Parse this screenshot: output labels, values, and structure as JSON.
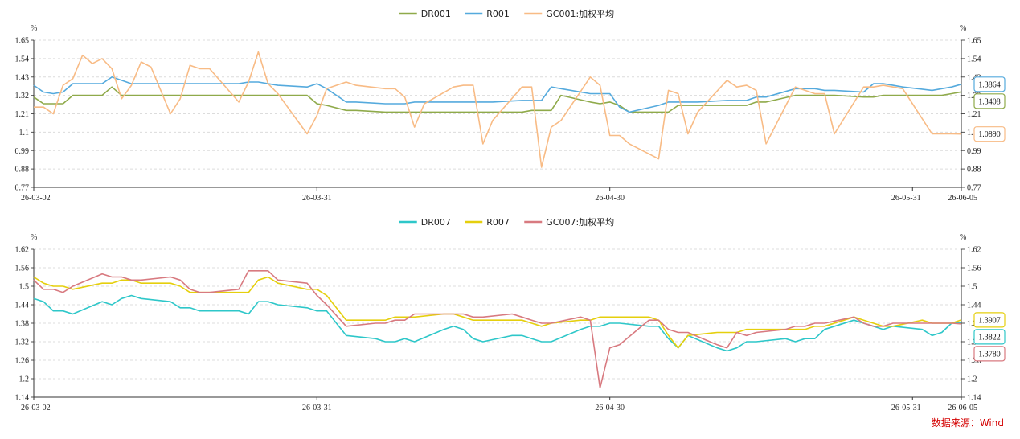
{
  "source_note": "数据来源：Wind",
  "chart_data": [
    {
      "type": "line",
      "unit_left": "%",
      "unit_right": "%",
      "ylim": [
        0.77,
        1.65
      ],
      "yticks": [
        "1.65",
        "1.54",
        "1.43",
        "1.32",
        "1.21",
        "1.1",
        "0.99",
        "0.88",
        "0.77"
      ],
      "xticks": [
        {
          "label": "26-03-02",
          "t": 0
        },
        {
          "label": "26-03-31",
          "t": 29
        },
        {
          "label": "26-04-30",
          "t": 59
        },
        {
          "label": "26-05-31",
          "t": 90
        },
        {
          "label": "26-06-05",
          "t": 95
        }
      ],
      "x_range": [
        0,
        95
      ],
      "grid": "horizontal-dashed",
      "legend": "top-center",
      "series": [
        {
          "name": "DR001",
          "color": "#8faa4a",
          "t": [
            0,
            1,
            3,
            4,
            5,
            7,
            8,
            9,
            10,
            11,
            14,
            15,
            16,
            17,
            18,
            21,
            22,
            23,
            24,
            25,
            28,
            29,
            30,
            32,
            33,
            36,
            37,
            38,
            39,
            40,
            43,
            44,
            45,
            46,
            47,
            50,
            51,
            52,
            53,
            54,
            57,
            58,
            59,
            60,
            61,
            64,
            65,
            66,
            67,
            68,
            71,
            72,
            73,
            74,
            75,
            78,
            79,
            80,
            81,
            82,
            85,
            86,
            87,
            88,
            89,
            92,
            93,
            94,
            95
          ],
          "values": [
            1.31,
            1.27,
            1.27,
            1.32,
            1.32,
            1.32,
            1.37,
            1.32,
            1.32,
            1.32,
            1.32,
            1.32,
            1.32,
            1.32,
            1.32,
            1.32,
            1.32,
            1.32,
            1.32,
            1.32,
            1.32,
            1.27,
            1.26,
            1.23,
            1.23,
            1.22,
            1.22,
            1.22,
            1.22,
            1.22,
            1.22,
            1.22,
            1.22,
            1.22,
            1.22,
            1.22,
            1.23,
            1.23,
            1.23,
            1.32,
            1.28,
            1.27,
            1.28,
            1.26,
            1.22,
            1.22,
            1.22,
            1.26,
            1.26,
            1.26,
            1.26,
            1.26,
            1.26,
            1.28,
            1.28,
            1.32,
            1.32,
            1.32,
            1.32,
            1.32,
            1.31,
            1.31,
            1.32,
            1.32,
            1.32,
            1.32,
            1.32,
            1.33,
            1.3408
          ]
        },
        {
          "name": "R001",
          "color": "#55aadd",
          "t": [
            0,
            1,
            2,
            3,
            4,
            5,
            6,
            7,
            8,
            9,
            10,
            11,
            12,
            14,
            15,
            16,
            17,
            18,
            21,
            22,
            23,
            24,
            25,
            28,
            29,
            30,
            32,
            33,
            36,
            37,
            38,
            39,
            40,
            43,
            44,
            45,
            46,
            47,
            50,
            51,
            52,
            53,
            54,
            57,
            58,
            59,
            60,
            61,
            64,
            65,
            66,
            67,
            68,
            71,
            72,
            73,
            74,
            75,
            78,
            79,
            80,
            81,
            82,
            85,
            86,
            87,
            88,
            89,
            92,
            93,
            94,
            95
          ],
          "values": [
            1.38,
            1.34,
            1.33,
            1.34,
            1.39,
            1.39,
            1.39,
            1.39,
            1.43,
            1.41,
            1.39,
            1.39,
            1.39,
            1.39,
            1.39,
            1.39,
            1.39,
            1.39,
            1.39,
            1.4,
            1.4,
            1.39,
            1.38,
            1.37,
            1.39,
            1.36,
            1.28,
            1.28,
            1.27,
            1.27,
            1.27,
            1.28,
            1.28,
            1.28,
            1.28,
            1.28,
            1.28,
            1.28,
            1.29,
            1.29,
            1.29,
            1.37,
            1.36,
            1.33,
            1.33,
            1.33,
            1.25,
            1.22,
            1.26,
            1.28,
            1.28,
            1.28,
            1.28,
            1.29,
            1.29,
            1.29,
            1.31,
            1.31,
            1.36,
            1.36,
            1.36,
            1.35,
            1.35,
            1.34,
            1.39,
            1.39,
            1.38,
            1.37,
            1.35,
            1.36,
            1.37,
            1.3864
          ]
        },
        {
          "name": "GC001:加权平均",
          "color": "#f8bb85",
          "t": [
            0,
            1,
            2,
            3,
            4,
            5,
            6,
            7,
            8,
            9,
            10,
            11,
            12,
            14,
            15,
            16,
            17,
            18,
            21,
            22,
            23,
            24,
            25,
            28,
            29,
            30,
            32,
            33,
            36,
            37,
            38,
            39,
            40,
            43,
            44,
            45,
            46,
            47,
            50,
            51,
            52,
            53,
            54,
            57,
            58,
            59,
            60,
            61,
            64,
            65,
            66,
            67,
            68,
            71,
            72,
            73,
            74,
            75,
            78,
            79,
            80,
            81,
            82,
            85,
            86,
            87,
            88,
            89,
            92,
            93,
            94,
            95
          ],
          "values": [
            1.25,
            1.25,
            1.21,
            1.38,
            1.42,
            1.56,
            1.51,
            1.54,
            1.48,
            1.3,
            1.38,
            1.52,
            1.49,
            1.21,
            1.3,
            1.5,
            1.48,
            1.48,
            1.28,
            1.4,
            1.58,
            1.39,
            1.33,
            1.09,
            1.2,
            1.36,
            1.4,
            1.38,
            1.36,
            1.36,
            1.31,
            1.13,
            1.27,
            1.37,
            1.38,
            1.38,
            1.03,
            1.17,
            1.37,
            1.37,
            0.89,
            1.13,
            1.17,
            1.43,
            1.38,
            1.08,
            1.08,
            1.03,
            0.94,
            1.35,
            1.33,
            1.09,
            1.22,
            1.41,
            1.37,
            1.38,
            1.35,
            1.03,
            1.37,
            1.35,
            1.33,
            1.33,
            1.09,
            1.37,
            1.37,
            1.38,
            1.37,
            1.36,
            1.09,
            1.09,
            1.09,
            1.089
          ]
        }
      ],
      "end_labels": [
        {
          "text": "1.3864",
          "value": 1.3864,
          "color": "#55aadd"
        },
        {
          "text": "1.3408",
          "value": 1.3408,
          "color": "#8faa4a"
        },
        {
          "text": "1.0890",
          "value": 1.089,
          "color": "#f8bb85"
        }
      ]
    },
    {
      "type": "line",
      "unit_left": "%",
      "unit_right": "%",
      "ylim": [
        1.14,
        1.62
      ],
      "yticks": [
        "1.62",
        "1.56",
        "1.5",
        "1.44",
        "1.38",
        "1.32",
        "1.26",
        "1.2",
        "1.14"
      ],
      "xticks": [
        {
          "label": "26-03-02",
          "t": 0
        },
        {
          "label": "26-03-31",
          "t": 29
        },
        {
          "label": "26-04-30",
          "t": 59
        },
        {
          "label": "26-05-31",
          "t": 90
        },
        {
          "label": "26-06-05",
          "t": 95
        }
      ],
      "x_range": [
        0,
        95
      ],
      "grid": "horizontal-dashed",
      "legend": "top-center",
      "series": [
        {
          "name": "DR007",
          "color": "#2ec7c9",
          "t": [
            0,
            1,
            2,
            3,
            4,
            7,
            8,
            9,
            10,
            11,
            14,
            15,
            16,
            17,
            18,
            21,
            22,
            23,
            24,
            25,
            28,
            29,
            30,
            32,
            35,
            36,
            37,
            38,
            39,
            42,
            43,
            44,
            45,
            46,
            49,
            50,
            51,
            52,
            53,
            56,
            57,
            58,
            59,
            60,
            63,
            64,
            65,
            66,
            67,
            70,
            71,
            72,
            73,
            74,
            77,
            78,
            79,
            80,
            81,
            84,
            85,
            86,
            87,
            88,
            91,
            92,
            93,
            94,
            95
          ],
          "values": [
            1.46,
            1.45,
            1.42,
            1.42,
            1.41,
            1.45,
            1.44,
            1.46,
            1.47,
            1.46,
            1.45,
            1.43,
            1.43,
            1.42,
            1.42,
            1.42,
            1.41,
            1.45,
            1.45,
            1.44,
            1.43,
            1.42,
            1.42,
            1.34,
            1.33,
            1.32,
            1.32,
            1.33,
            1.32,
            1.36,
            1.37,
            1.36,
            1.33,
            1.32,
            1.34,
            1.34,
            1.33,
            1.32,
            1.32,
            1.36,
            1.37,
            1.37,
            1.38,
            1.38,
            1.37,
            1.37,
            1.33,
            1.3,
            1.34,
            1.3,
            1.29,
            1.3,
            1.32,
            1.32,
            1.33,
            1.32,
            1.33,
            1.33,
            1.36,
            1.39,
            1.38,
            1.37,
            1.36,
            1.37,
            1.36,
            1.34,
            1.35,
            1.38,
            1.3822
          ]
        },
        {
          "name": "R007",
          "color": "#e5cf0d",
          "t": [
            0,
            1,
            2,
            3,
            4,
            7,
            8,
            9,
            10,
            11,
            14,
            15,
            16,
            17,
            18,
            21,
            22,
            23,
            24,
            25,
            28,
            29,
            30,
            32,
            35,
            36,
            37,
            38,
            39,
            42,
            43,
            44,
            45,
            46,
            49,
            50,
            51,
            52,
            53,
            56,
            57,
            58,
            59,
            60,
            63,
            64,
            65,
            66,
            67,
            70,
            71,
            72,
            73,
            74,
            77,
            78,
            79,
            80,
            81,
            84,
            85,
            86,
            87,
            88,
            91,
            92,
            93,
            94,
            95
          ],
          "values": [
            1.53,
            1.51,
            1.5,
            1.5,
            1.49,
            1.51,
            1.51,
            1.52,
            1.52,
            1.51,
            1.51,
            1.5,
            1.48,
            1.48,
            1.48,
            1.48,
            1.48,
            1.52,
            1.53,
            1.51,
            1.49,
            1.49,
            1.47,
            1.39,
            1.39,
            1.39,
            1.4,
            1.4,
            1.4,
            1.41,
            1.41,
            1.4,
            1.39,
            1.39,
            1.39,
            1.39,
            1.38,
            1.37,
            1.38,
            1.39,
            1.39,
            1.4,
            1.4,
            1.4,
            1.4,
            1.39,
            1.34,
            1.3,
            1.34,
            1.35,
            1.35,
            1.35,
            1.36,
            1.36,
            1.36,
            1.36,
            1.36,
            1.37,
            1.37,
            1.4,
            1.39,
            1.38,
            1.37,
            1.37,
            1.39,
            1.38,
            1.38,
            1.38,
            1.3907
          ]
        },
        {
          "name": "GC007:加权平均",
          "color": "#d87a80",
          "t": [
            0,
            1,
            2,
            3,
            4,
            7,
            8,
            9,
            10,
            11,
            14,
            15,
            16,
            17,
            18,
            21,
            22,
            23,
            24,
            25,
            28,
            29,
            30,
            32,
            35,
            36,
            37,
            38,
            39,
            42,
            43,
            44,
            45,
            46,
            49,
            50,
            51,
            52,
            53,
            56,
            57,
            58,
            59,
            60,
            63,
            64,
            65,
            66,
            67,
            70,
            71,
            72,
            73,
            74,
            77,
            78,
            79,
            80,
            81,
            84,
            85,
            86,
            87,
            88,
            91,
            92,
            93,
            94,
            95
          ],
          "values": [
            1.52,
            1.49,
            1.49,
            1.48,
            1.5,
            1.54,
            1.53,
            1.53,
            1.52,
            1.52,
            1.53,
            1.52,
            1.49,
            1.48,
            1.48,
            1.49,
            1.55,
            1.55,
            1.55,
            1.52,
            1.51,
            1.47,
            1.44,
            1.37,
            1.38,
            1.38,
            1.39,
            1.39,
            1.41,
            1.41,
            1.41,
            1.41,
            1.4,
            1.4,
            1.41,
            1.4,
            1.39,
            1.38,
            1.38,
            1.4,
            1.39,
            1.17,
            1.3,
            1.31,
            1.39,
            1.39,
            1.36,
            1.35,
            1.35,
            1.31,
            1.3,
            1.35,
            1.34,
            1.35,
            1.36,
            1.37,
            1.37,
            1.38,
            1.38,
            1.4,
            1.38,
            1.37,
            1.37,
            1.38,
            1.38,
            1.38,
            1.38,
            1.38,
            1.378
          ]
        }
      ],
      "end_labels": [
        {
          "text": "1.3907",
          "value": 1.3907,
          "color": "#e5cf0d"
        },
        {
          "text": "1.3822",
          "value": 1.3822,
          "color": "#2ec7c9"
        },
        {
          "text": "1.3780",
          "value": 1.378,
          "color": "#d87a80"
        }
      ]
    }
  ]
}
